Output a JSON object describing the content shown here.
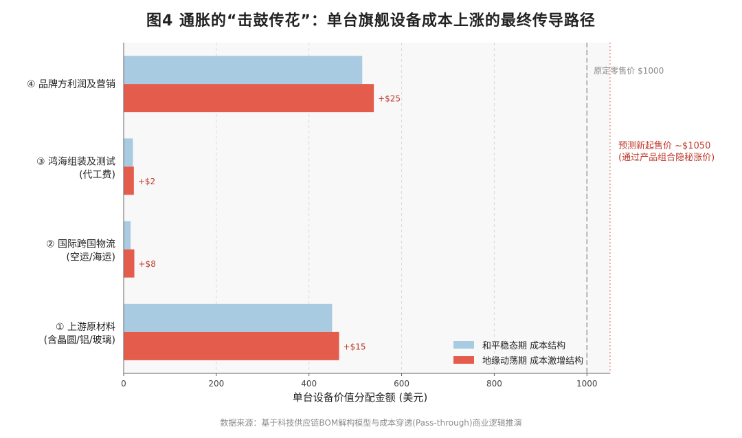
{
  "title": "图4 通胀的“击鼓传花”：单台旗舰设备成本上涨的最终传导路径",
  "source": "数据来源：基于科技供应链BOM解构模型与成本穿透(Pass-through)商业逻辑推演",
  "colors": {
    "peace": "#a9cbe2",
    "turmoil": "#e45c4c",
    "delta_text": "#c0392b",
    "plot_bg": "#f8f8f8",
    "grid": "#d9d9d9",
    "ref_line": "#999999",
    "forecast_line": "#e07b74",
    "forecast_text": "#c0392b"
  },
  "legend": {
    "peace": "和平稳态期 成本结构",
    "turmoil": "地缘动荡期 成本激增结构"
  },
  "annotations": {
    "original_price": "原定零售价 $1000",
    "forecast_line1": "预测新起售价 ~$1050",
    "forecast_line2": "(通过产品组合隐秘涨价)"
  },
  "chart_data": {
    "type": "bar",
    "orientation": "horizontal",
    "xlabel": "单台设备价值分配金额 (美元)",
    "ylabel": "",
    "xlim": [
      0,
      1050
    ],
    "xticks": [
      0,
      200,
      400,
      600,
      800,
      1000
    ],
    "grid": true,
    "legend_position": "bottom-right",
    "categories": [
      {
        "line1": "① 上游原材料",
        "line2": "(含晶圆/铝/玻璃)"
      },
      {
        "line1": "② 国际跨国物流",
        "line2": "(空运/海运)"
      },
      {
        "line1": "③ 鸿海组装及测试",
        "line2": "(代工费)"
      },
      {
        "line1": "④ 品牌方利润及营销",
        "line2": ""
      }
    ],
    "series": [
      {
        "name": "和平稳态期 成本结构",
        "values": [
          450,
          15,
          20,
          515
        ]
      },
      {
        "name": "地缘动荡期 成本激增结构",
        "values": [
          465,
          23,
          22,
          540
        ]
      }
    ],
    "delta_labels": [
      "+$15",
      "+$8",
      "+$2",
      "+$25"
    ],
    "reference_lines": [
      {
        "x": 1000,
        "label": "原定零售价 $1000"
      },
      {
        "x": 1050,
        "label": "预测新起售价 ~$1050 (通过产品组合隐秘涨价)"
      }
    ]
  }
}
